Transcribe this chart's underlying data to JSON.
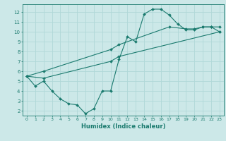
{
  "xlabel": "Humidex (Indice chaleur)",
  "xlim": [
    -0.5,
    23.5
  ],
  "ylim": [
    1.5,
    12.8
  ],
  "yticks": [
    2,
    3,
    4,
    5,
    6,
    7,
    8,
    9,
    10,
    11,
    12
  ],
  "xticks": [
    0,
    1,
    2,
    3,
    4,
    5,
    6,
    7,
    8,
    9,
    10,
    11,
    12,
    13,
    14,
    15,
    16,
    17,
    18,
    19,
    20,
    21,
    22,
    23
  ],
  "line_color": "#1a7a6e",
  "bg_color": "#cce8e8",
  "grid_color": "#b0d8d8",
  "line1_x": [
    0,
    1,
    2,
    3,
    4,
    5,
    6,
    7,
    8,
    9,
    10,
    11,
    12,
    13,
    14,
    15,
    16,
    17,
    18,
    19,
    20,
    21,
    22,
    23
  ],
  "line1_y": [
    5.5,
    4.5,
    5.0,
    4.0,
    3.2,
    2.7,
    2.6,
    1.7,
    2.2,
    4.0,
    4.0,
    7.2,
    9.5,
    9.0,
    11.8,
    12.3,
    12.3,
    11.7,
    10.8,
    10.2,
    10.2,
    10.5,
    10.5,
    10.0
  ],
  "line2_x": [
    0,
    2,
    10,
    11,
    23
  ],
  "line2_y": [
    5.5,
    5.3,
    7.0,
    7.5,
    10.0
  ],
  "line3_x": [
    0,
    2,
    10,
    11,
    17,
    19,
    20,
    21,
    22,
    23
  ],
  "line3_y": [
    5.5,
    6.0,
    8.2,
    8.7,
    10.5,
    10.3,
    10.3,
    10.5,
    10.5,
    10.5
  ]
}
